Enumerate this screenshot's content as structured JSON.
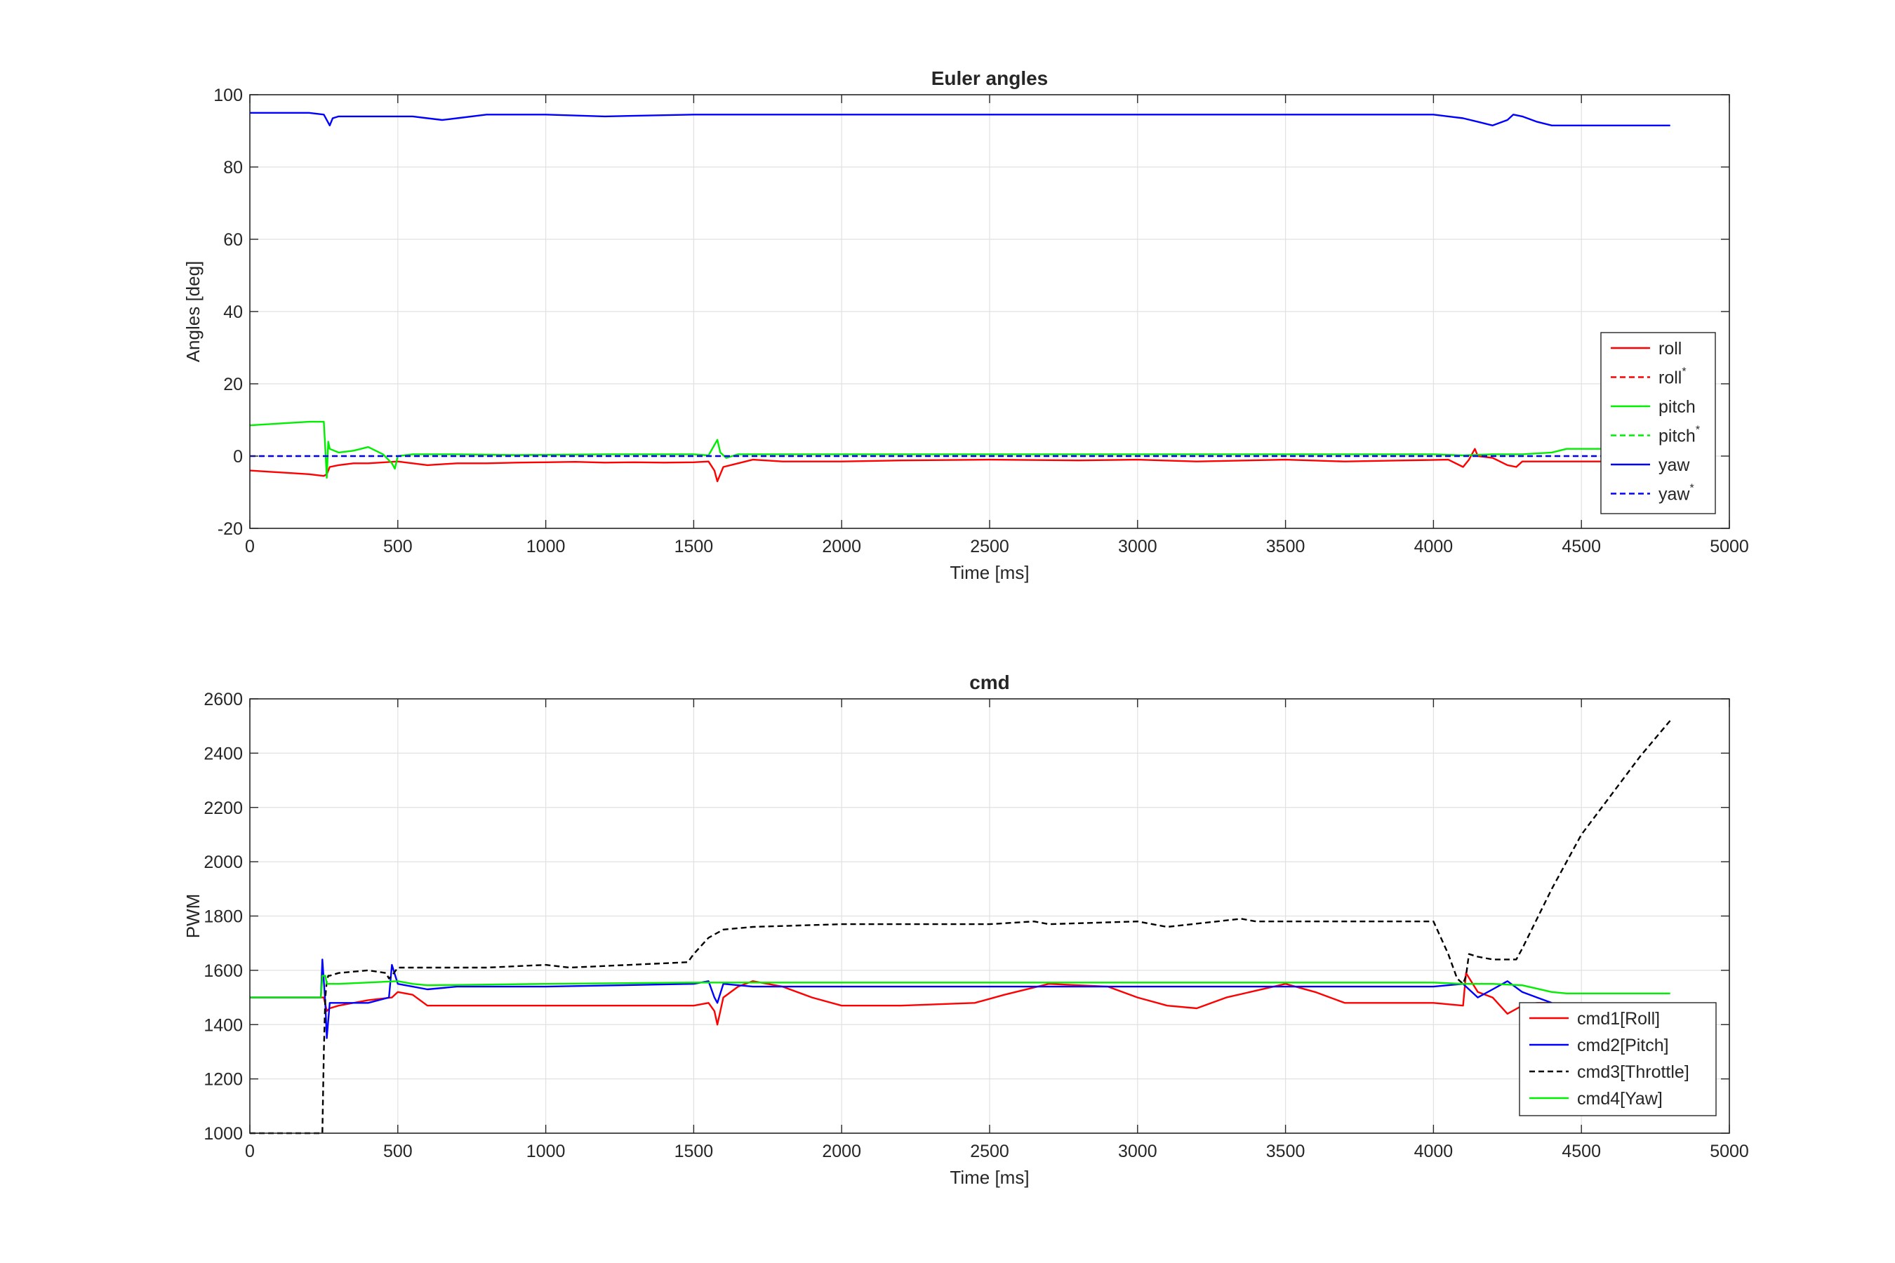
{
  "colors": {
    "red": "#ff0000",
    "green": "#00ee00",
    "blue": "#0000ff",
    "black": "#000000",
    "grid": "#e1e1e1",
    "axis": "#262626"
  },
  "chart_data": [
    {
      "type": "line",
      "title": "Euler angles",
      "xlabel": "Time [ms]",
      "ylabel": "Angles [deg]",
      "xlim": [
        0,
        5000
      ],
      "ylim": [
        -20,
        100
      ],
      "xticks": [
        "0",
        "500",
        "1000",
        "1500",
        "2000",
        "2500",
        "3000",
        "3500",
        "4000",
        "4500",
        "5000"
      ],
      "yticks": [
        "-20",
        "0",
        "20",
        "40",
        "60",
        "80",
        "100"
      ],
      "grid": true,
      "legend_position": "bottom-right",
      "series": [
        {
          "name": "roll",
          "sup": "",
          "color": "red",
          "dash": false,
          "x": [
            0,
            100,
            200,
            250,
            260,
            270,
            300,
            350,
            400,
            500,
            550,
            600,
            700,
            800,
            900,
            1000,
            1100,
            1200,
            1300,
            1400,
            1500,
            1550,
            1570,
            1580,
            1590,
            1600,
            1650,
            1700,
            1800,
            2000,
            2200,
            2500,
            2800,
            3000,
            3200,
            3500,
            3700,
            3900,
            4050,
            4100,
            4120,
            4140,
            4150,
            4200,
            4250,
            4280,
            4300,
            4400,
            4500,
            4800
          ],
          "y": [
            -4,
            -4.5,
            -5,
            -5.5,
            -5,
            -3,
            -2.5,
            -2,
            -2,
            -1.5,
            -2,
            -2.5,
            -2,
            -2,
            -1.8,
            -1.7,
            -1.6,
            -1.8,
            -1.7,
            -1.8,
            -1.7,
            -1.5,
            -4,
            -7,
            -5,
            -3,
            -2,
            -1,
            -1.5,
            -1.5,
            -1.2,
            -1,
            -1.2,
            -1,
            -1.5,
            -1,
            -1.5,
            -1.2,
            -1,
            -3,
            -1,
            2,
            0,
            -0.5,
            -2.5,
            -3,
            -1.5,
            -1.5,
            -1.5,
            -1.5
          ]
        },
        {
          "name": "roll",
          "sup": "*",
          "color": "red",
          "dash": true,
          "x": [],
          "y": []
        },
        {
          "name": "pitch",
          "sup": "",
          "color": "green",
          "dash": false,
          "x": [
            0,
            100,
            200,
            250,
            255,
            260,
            265,
            270,
            300,
            350,
            400,
            450,
            480,
            490,
            500,
            550,
            700,
            900,
            1200,
            1500,
            1550,
            1580,
            1590,
            1610,
            1650,
            1800,
            2000,
            2500,
            3000,
            3500,
            4000,
            4100,
            4200,
            4300,
            4400,
            4450,
            4800
          ],
          "y": [
            8.5,
            9,
            9.5,
            9.5,
            2,
            -6,
            4,
            2,
            1,
            1.5,
            2.5,
            0.5,
            -2,
            -3.5,
            0,
            0.5,
            0.5,
            0.3,
            0.5,
            0.5,
            0.2,
            4.5,
            1,
            -0.5,
            0.5,
            0.5,
            0.5,
            0.5,
            0.5,
            0.5,
            0.5,
            0.2,
            0.5,
            0.5,
            1,
            2,
            2
          ]
        },
        {
          "name": "pitch",
          "sup": "*",
          "color": "green",
          "dash": true,
          "x": [],
          "y": []
        },
        {
          "name": "yaw",
          "sup": "",
          "color": "blue",
          "dash": false,
          "x": [
            0,
            100,
            200,
            250,
            270,
            280,
            300,
            350,
            400,
            500,
            550,
            600,
            650,
            700,
            800,
            1000,
            1200,
            1500,
            1800,
            2000,
            2500,
            3000,
            3500,
            4000,
            4050,
            4100,
            4150,
            4200,
            4250,
            4270,
            4300,
            4350,
            4400,
            4800
          ],
          "y": [
            95,
            95,
            95,
            94.5,
            91.5,
            93.5,
            94,
            94,
            94,
            94,
            94,
            93.5,
            93,
            93.5,
            94.5,
            94.5,
            94,
            94.5,
            94.5,
            94.5,
            94.5,
            94.5,
            94.5,
            94.5,
            94,
            93.5,
            92.5,
            91.5,
            93,
            94.5,
            94,
            92.5,
            91.5,
            91.5
          ]
        },
        {
          "name": "yaw",
          "sup": "*",
          "color": "blue",
          "dash": true,
          "x": [
            0,
            4800
          ],
          "y": [
            0,
            0
          ]
        }
      ]
    },
    {
      "type": "line",
      "title": "cmd",
      "xlabel": "Time [ms]",
      "ylabel": "PWM",
      "xlim": [
        0,
        5000
      ],
      "ylim": [
        1000,
        2600
      ],
      "xticks": [
        "0",
        "500",
        "1000",
        "1500",
        "2000",
        "2500",
        "3000",
        "3500",
        "4000",
        "4500",
        "5000"
      ],
      "yticks": [
        "1000",
        "1200",
        "1400",
        "1600",
        "1800",
        "2000",
        "2200",
        "2400",
        "2600"
      ],
      "grid": true,
      "legend_position": "bottom-right",
      "series": [
        {
          "name": "cmd1[Roll]",
          "sup": "",
          "color": "red",
          "dash": false,
          "x": [
            0,
            240,
            250,
            260,
            270,
            300,
            400,
            480,
            500,
            550,
            600,
            700,
            1000,
            1300,
            1500,
            1550,
            1570,
            1580,
            1600,
            1650,
            1700,
            1800,
            1900,
            2000,
            2200,
            2450,
            2550,
            2700,
            2900,
            3000,
            3100,
            3200,
            3300,
            3500,
            3600,
            3700,
            3900,
            4000,
            4100,
            4110,
            4150,
            4200,
            4250,
            4300,
            4350,
            4400
          ],
          "y": [
            1500,
            1500,
            1500,
            1450,
            1460,
            1470,
            1490,
            1500,
            1520,
            1510,
            1470,
            1470,
            1470,
            1470,
            1470,
            1480,
            1450,
            1400,
            1500,
            1540,
            1560,
            1540,
            1500,
            1470,
            1470,
            1480,
            1510,
            1550,
            1540,
            1500,
            1470,
            1460,
            1500,
            1550,
            1520,
            1480,
            1480,
            1480,
            1470,
            1590,
            1520,
            1500,
            1440,
            1470,
            1480,
            1480
          ]
        },
        {
          "name": "cmd2[Pitch]",
          "sup": "",
          "color": "blue",
          "dash": false,
          "x": [
            0,
            240,
            245,
            255,
            260,
            270,
            300,
            400,
            470,
            480,
            500,
            550,
            600,
            700,
            1000,
            1500,
            1550,
            1570,
            1580,
            1600,
            1700,
            2000,
            2500,
            3000,
            3500,
            4000,
            4100,
            4150,
            4200,
            4250,
            4300,
            4350,
            4400
          ],
          "y": [
            1500,
            1500,
            1640,
            1480,
            1350,
            1480,
            1480,
            1480,
            1500,
            1620,
            1550,
            1540,
            1530,
            1540,
            1540,
            1550,
            1560,
            1500,
            1480,
            1550,
            1540,
            1540,
            1540,
            1540,
            1540,
            1540,
            1550,
            1500,
            1530,
            1560,
            1520,
            1500,
            1480
          ]
        },
        {
          "name": "cmd3[Throttle]",
          "sup": "",
          "color": "black",
          "dash": true,
          "x": [
            0,
            240,
            245,
            250,
            255,
            260,
            265,
            270,
            300,
            400,
            460,
            470,
            480,
            500,
            600,
            800,
            1000,
            1080,
            1480,
            1500,
            1550,
            1600,
            1700,
            2000,
            2500,
            2650,
            2700,
            3000,
            3100,
            3350,
            3400,
            4000,
            4050,
            4080,
            4100,
            4110,
            4120,
            4150,
            4200,
            4250,
            4280,
            4300,
            4400,
            4500,
            4700,
            4800
          ],
          "y": [
            1000,
            1000,
            1000,
            1300,
            1500,
            1560,
            1580,
            1580,
            1590,
            1600,
            1590,
            1570,
            1580,
            1610,
            1610,
            1610,
            1620,
            1610,
            1630,
            1660,
            1720,
            1750,
            1760,
            1770,
            1770,
            1780,
            1770,
            1780,
            1760,
            1790,
            1780,
            1780,
            1660,
            1570,
            1550,
            1580,
            1660,
            1650,
            1640,
            1640,
            1640,
            1680,
            1900,
            2100,
            2390,
            2520
          ]
        },
        {
          "name": "cmd4[Yaw]",
          "sup": "",
          "color": "green",
          "dash": false,
          "x": [
            0,
            240,
            245,
            255,
            260,
            300,
            500,
            550,
            600,
            1000,
            1500,
            2000,
            2500,
            3000,
            3500,
            4000,
            4100,
            4200,
            4300,
            4400,
            4450,
            4800
          ],
          "y": [
            1500,
            1500,
            1580,
            1580,
            1550,
            1550,
            1560,
            1550,
            1545,
            1550,
            1555,
            1555,
            1555,
            1555,
            1555,
            1555,
            1550,
            1550,
            1545,
            1520,
            1515,
            1515
          ]
        }
      ]
    }
  ]
}
